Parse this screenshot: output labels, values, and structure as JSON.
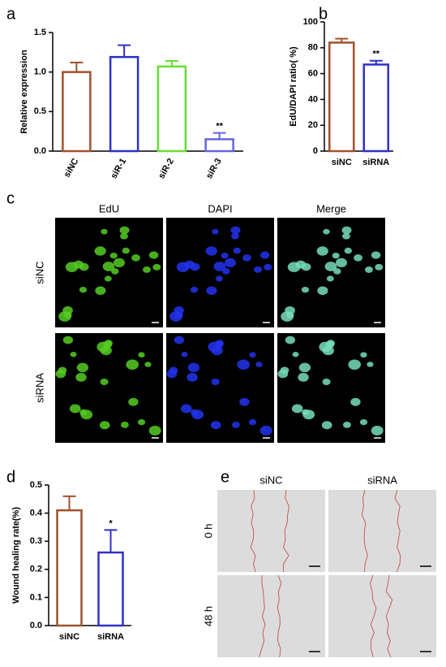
{
  "chart_data": [
    {
      "type": "bar",
      "panel": "a",
      "ylabel": "Relative expression",
      "categories": [
        "siNC",
        "siR-1",
        "siR-2",
        "siR-3"
      ],
      "values": [
        1.0,
        1.19,
        1.07,
        0.15
      ],
      "errors": [
        0.12,
        0.15,
        0.07,
        0.08
      ],
      "colors": [
        "#a0522d",
        "#2f2fcc",
        "#66dd33",
        "#6666dd"
      ],
      "ylim": [
        0,
        1.5
      ],
      "yticks": [
        {
          "value": 0,
          "label": "0.0"
        },
        0.5,
        {
          "value": 1,
          "label": "1.0"
        },
        1.5
      ],
      "annotations": [
        {
          "category": "siR-3",
          "text": "**"
        }
      ]
    },
    {
      "type": "bar",
      "panel": "b",
      "ylabel": "EdU/DAPI ratio( %)",
      "categories": [
        "siNC",
        "siRNA"
      ],
      "values": [
        84,
        67
      ],
      "errors": [
        3,
        3
      ],
      "colors": [
        "#a0522d",
        "#2f2fcc"
      ],
      "ylim": [
        0,
        100
      ],
      "yticks": [
        0,
        20,
        40,
        60,
        80,
        100
      ],
      "annotations": [
        {
          "category": "siRNA",
          "text": "**"
        }
      ]
    },
    {
      "type": "bar",
      "panel": "d",
      "ylabel": "Wound healing rate(%)",
      "categories": [
        "siNC",
        "siRNA"
      ],
      "values": [
        0.41,
        0.26
      ],
      "errors": [
        0.05,
        0.08
      ],
      "colors": [
        "#a0522d",
        "#2f2fcc"
      ],
      "ylim": [
        0,
        0.5
      ],
      "yticks": [
        {
          "value": 0,
          "label": "0.0"
        },
        0.1,
        0.2,
        0.3,
        0.4,
        0.5
      ],
      "annotations": [
        {
          "category": "siRNA",
          "text": "*"
        }
      ]
    }
  ],
  "panels": {
    "c": {
      "letter": "c",
      "columns": [
        "EdU",
        "DAPI",
        "Merge"
      ],
      "rows": [
        "siNC",
        "siRNA"
      ]
    },
    "e": {
      "letter": "e",
      "columns": [
        "siNC",
        "siRNA"
      ],
      "rows": [
        "0 h",
        "48 h"
      ]
    }
  }
}
